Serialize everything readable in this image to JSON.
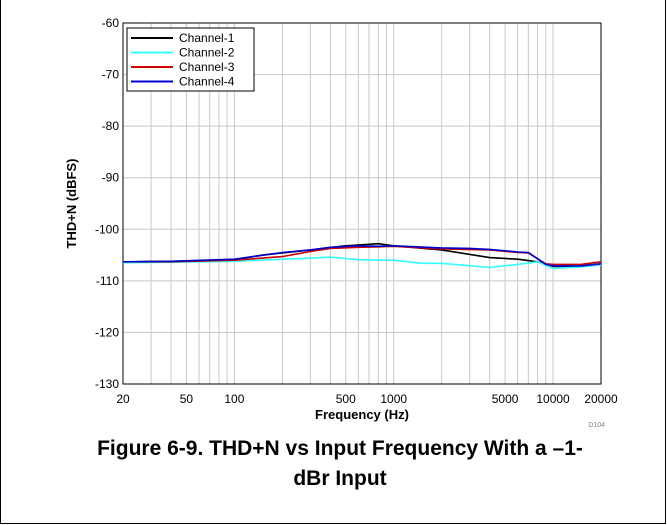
{
  "chart_data": {
    "type": "line",
    "title": "",
    "xlabel": "Frequency (Hz)",
    "ylabel": "THD+N (dBFS)",
    "xscale": "log",
    "xlim": [
      20,
      20000
    ],
    "ylim": [
      -130,
      -60
    ],
    "x_ticks": [
      20,
      50,
      100,
      500,
      1000,
      5000,
      10000,
      20000
    ],
    "x_tick_labels": [
      "20",
      "50",
      "100",
      "500",
      "1000",
      "5000",
      "10000",
      "20000"
    ],
    "y_ticks": [
      -60,
      -70,
      -80,
      -90,
      -100,
      -110,
      -120,
      -130
    ],
    "y_tick_labels": [
      "-60",
      "-70",
      "-80",
      "-90",
      "-100",
      "-110",
      "-120",
      "-130"
    ],
    "grid": true,
    "legend_position": "top-left",
    "series": [
      {
        "name": "Channel-1",
        "color": "#000000",
        "x": [
          20,
          40,
          100,
          150,
          300,
          500,
          800,
          1000,
          2000,
          4000,
          6000,
          8000,
          10000,
          15000,
          20000
        ],
        "y": [
          -106.3,
          -106.2,
          -105.9,
          -105.0,
          -104.0,
          -103.2,
          -102.8,
          -103.2,
          -104.0,
          -105.5,
          -105.8,
          -106.3,
          -107.2,
          -107.2,
          -106.7
        ]
      },
      {
        "name": "Channel-2",
        "color": "#33ffff",
        "x": [
          20,
          40,
          100,
          200,
          300,
          400,
          600,
          800,
          1000,
          1500,
          2000,
          4000,
          6000,
          8000,
          10000,
          15000,
          20000
        ],
        "y": [
          -106.5,
          -106.4,
          -106.2,
          -105.8,
          -105.6,
          -105.4,
          -105.9,
          -106.0,
          -106.0,
          -106.6,
          -106.6,
          -107.4,
          -106.8,
          -106.3,
          -107.6,
          -107.3,
          -106.9
        ]
      },
      {
        "name": "Channel-3",
        "color": "#cc0000",
        "x": [
          20,
          40,
          100,
          200,
          300,
          400,
          600,
          800,
          1000,
          2000,
          4000,
          6000,
          7000,
          9000,
          10000,
          15000,
          20000
        ],
        "y": [
          -106.3,
          -106.3,
          -106.0,
          -105.3,
          -104.3,
          -103.7,
          -103.5,
          -103.4,
          -103.3,
          -103.8,
          -104.0,
          -104.5,
          -104.6,
          -106.7,
          -106.8,
          -106.8,
          -106.3
        ]
      },
      {
        "name": "Channel-4",
        "color": "#0000cc",
        "x": [
          20,
          40,
          100,
          200,
          300,
          400,
          600,
          800,
          1000,
          2000,
          3000,
          4000,
          6000,
          7000,
          9000,
          10000,
          15000,
          20000
        ],
        "y": [
          -106.3,
          -106.2,
          -105.8,
          -104.5,
          -104.0,
          -103.5,
          -103.2,
          -103.3,
          -103.2,
          -103.6,
          -103.7,
          -103.9,
          -104.4,
          -104.5,
          -106.8,
          -107.1,
          -107.1,
          -106.7
        ]
      }
    ],
    "annotation": "D104"
  },
  "caption": {
    "line1": "Figure 6-9. THD+N vs Input Frequency With a –1-",
    "line2": "dBr Input"
  }
}
